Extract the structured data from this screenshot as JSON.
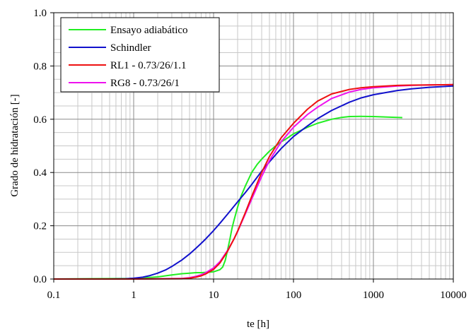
{
  "chart_data": {
    "type": "line",
    "title": "",
    "xlabel": "te [h]",
    "ylabel": "Grado de hidratación [-]",
    "x_scale": "log",
    "xlim": [
      0.1,
      10000
    ],
    "ylim": [
      0.0,
      1.0
    ],
    "x_ticks": [
      0.1,
      1,
      10,
      100,
      1000,
      10000
    ],
    "x_tick_labels": [
      "0.1",
      "1",
      "10",
      "100",
      "1000",
      "10000"
    ],
    "y_ticks": [
      0.0,
      0.2,
      0.4,
      0.6,
      0.8,
      1.0
    ],
    "y_tick_labels": [
      "0.0",
      "0.2",
      "0.4",
      "0.6",
      "0.8",
      "1.0"
    ],
    "grid": true,
    "legend_position": "top-left",
    "series": [
      {
        "name": "Ensayo adiabático",
        "color": "#22ee22",
        "x": [
          0.1,
          1,
          2,
          3,
          4,
          5,
          6,
          7,
          8,
          10,
          12,
          13,
          14,
          15,
          16,
          17,
          18,
          20,
          22,
          25,
          30,
          35,
          40,
          50,
          60,
          70,
          80,
          100,
          150,
          200,
          300,
          400,
          500,
          700,
          1000,
          1500,
          2000,
          2300
        ],
        "y": [
          0.0,
          0.002,
          0.008,
          0.015,
          0.02,
          0.022,
          0.024,
          0.024,
          0.025,
          0.027,
          0.035,
          0.045,
          0.07,
          0.11,
          0.15,
          0.19,
          0.22,
          0.27,
          0.31,
          0.35,
          0.4,
          0.43,
          0.45,
          0.48,
          0.5,
          0.515,
          0.525,
          0.545,
          0.57,
          0.585,
          0.6,
          0.607,
          0.61,
          0.611,
          0.61,
          0.608,
          0.607,
          0.606
        ]
      },
      {
        "name": "Schindler",
        "color": "#1111cc",
        "x": [
          0.1,
          0.5,
          0.8,
          1,
          1.3,
          1.6,
          2,
          2.5,
          3,
          4,
          5,
          6,
          7,
          8,
          10,
          12,
          15,
          20,
          25,
          30,
          40,
          50,
          70,
          100,
          150,
          200,
          300,
          500,
          700,
          1000,
          2000,
          3000,
          5000,
          10000
        ],
        "y": [
          0.0,
          0.0,
          0.001,
          0.003,
          0.007,
          0.013,
          0.022,
          0.034,
          0.047,
          0.071,
          0.094,
          0.115,
          0.134,
          0.151,
          0.182,
          0.209,
          0.244,
          0.29,
          0.325,
          0.355,
          0.405,
          0.44,
          0.49,
          0.535,
          0.575,
          0.602,
          0.633,
          0.664,
          0.68,
          0.692,
          0.708,
          0.714,
          0.72,
          0.725
        ]
      },
      {
        "name": "RL1 - 0.73/26/1.1",
        "color": "#ee1111",
        "x": [
          0.1,
          1,
          4,
          5,
          6,
          7,
          8,
          10,
          12,
          15,
          18,
          20,
          25,
          30,
          40,
          50,
          70,
          100,
          150,
          200,
          300,
          500,
          700,
          1000,
          2000,
          3000,
          5000,
          10000
        ],
        "y": [
          0.0,
          0.0,
          0.001,
          0.003,
          0.007,
          0.012,
          0.019,
          0.036,
          0.06,
          0.105,
          0.15,
          0.18,
          0.25,
          0.31,
          0.4,
          0.46,
          0.53,
          0.585,
          0.638,
          0.668,
          0.695,
          0.712,
          0.718,
          0.722,
          0.727,
          0.728,
          0.729,
          0.73
        ]
      },
      {
        "name": "RG8 - 0.73/26/1",
        "color": "#ee11ee",
        "x": [
          0.1,
          1,
          4,
          5,
          6,
          7,
          8,
          10,
          12,
          15,
          18,
          20,
          25,
          30,
          40,
          50,
          70,
          100,
          150,
          200,
          300,
          500,
          700,
          1000,
          2000,
          3000,
          5000,
          10000
        ],
        "y": [
          0.0,
          0.0,
          0.002,
          0.005,
          0.01,
          0.016,
          0.024,
          0.042,
          0.065,
          0.108,
          0.15,
          0.178,
          0.245,
          0.3,
          0.385,
          0.445,
          0.515,
          0.57,
          0.618,
          0.645,
          0.678,
          0.702,
          0.712,
          0.718,
          0.725,
          0.727,
          0.729,
          0.73
        ]
      }
    ]
  }
}
